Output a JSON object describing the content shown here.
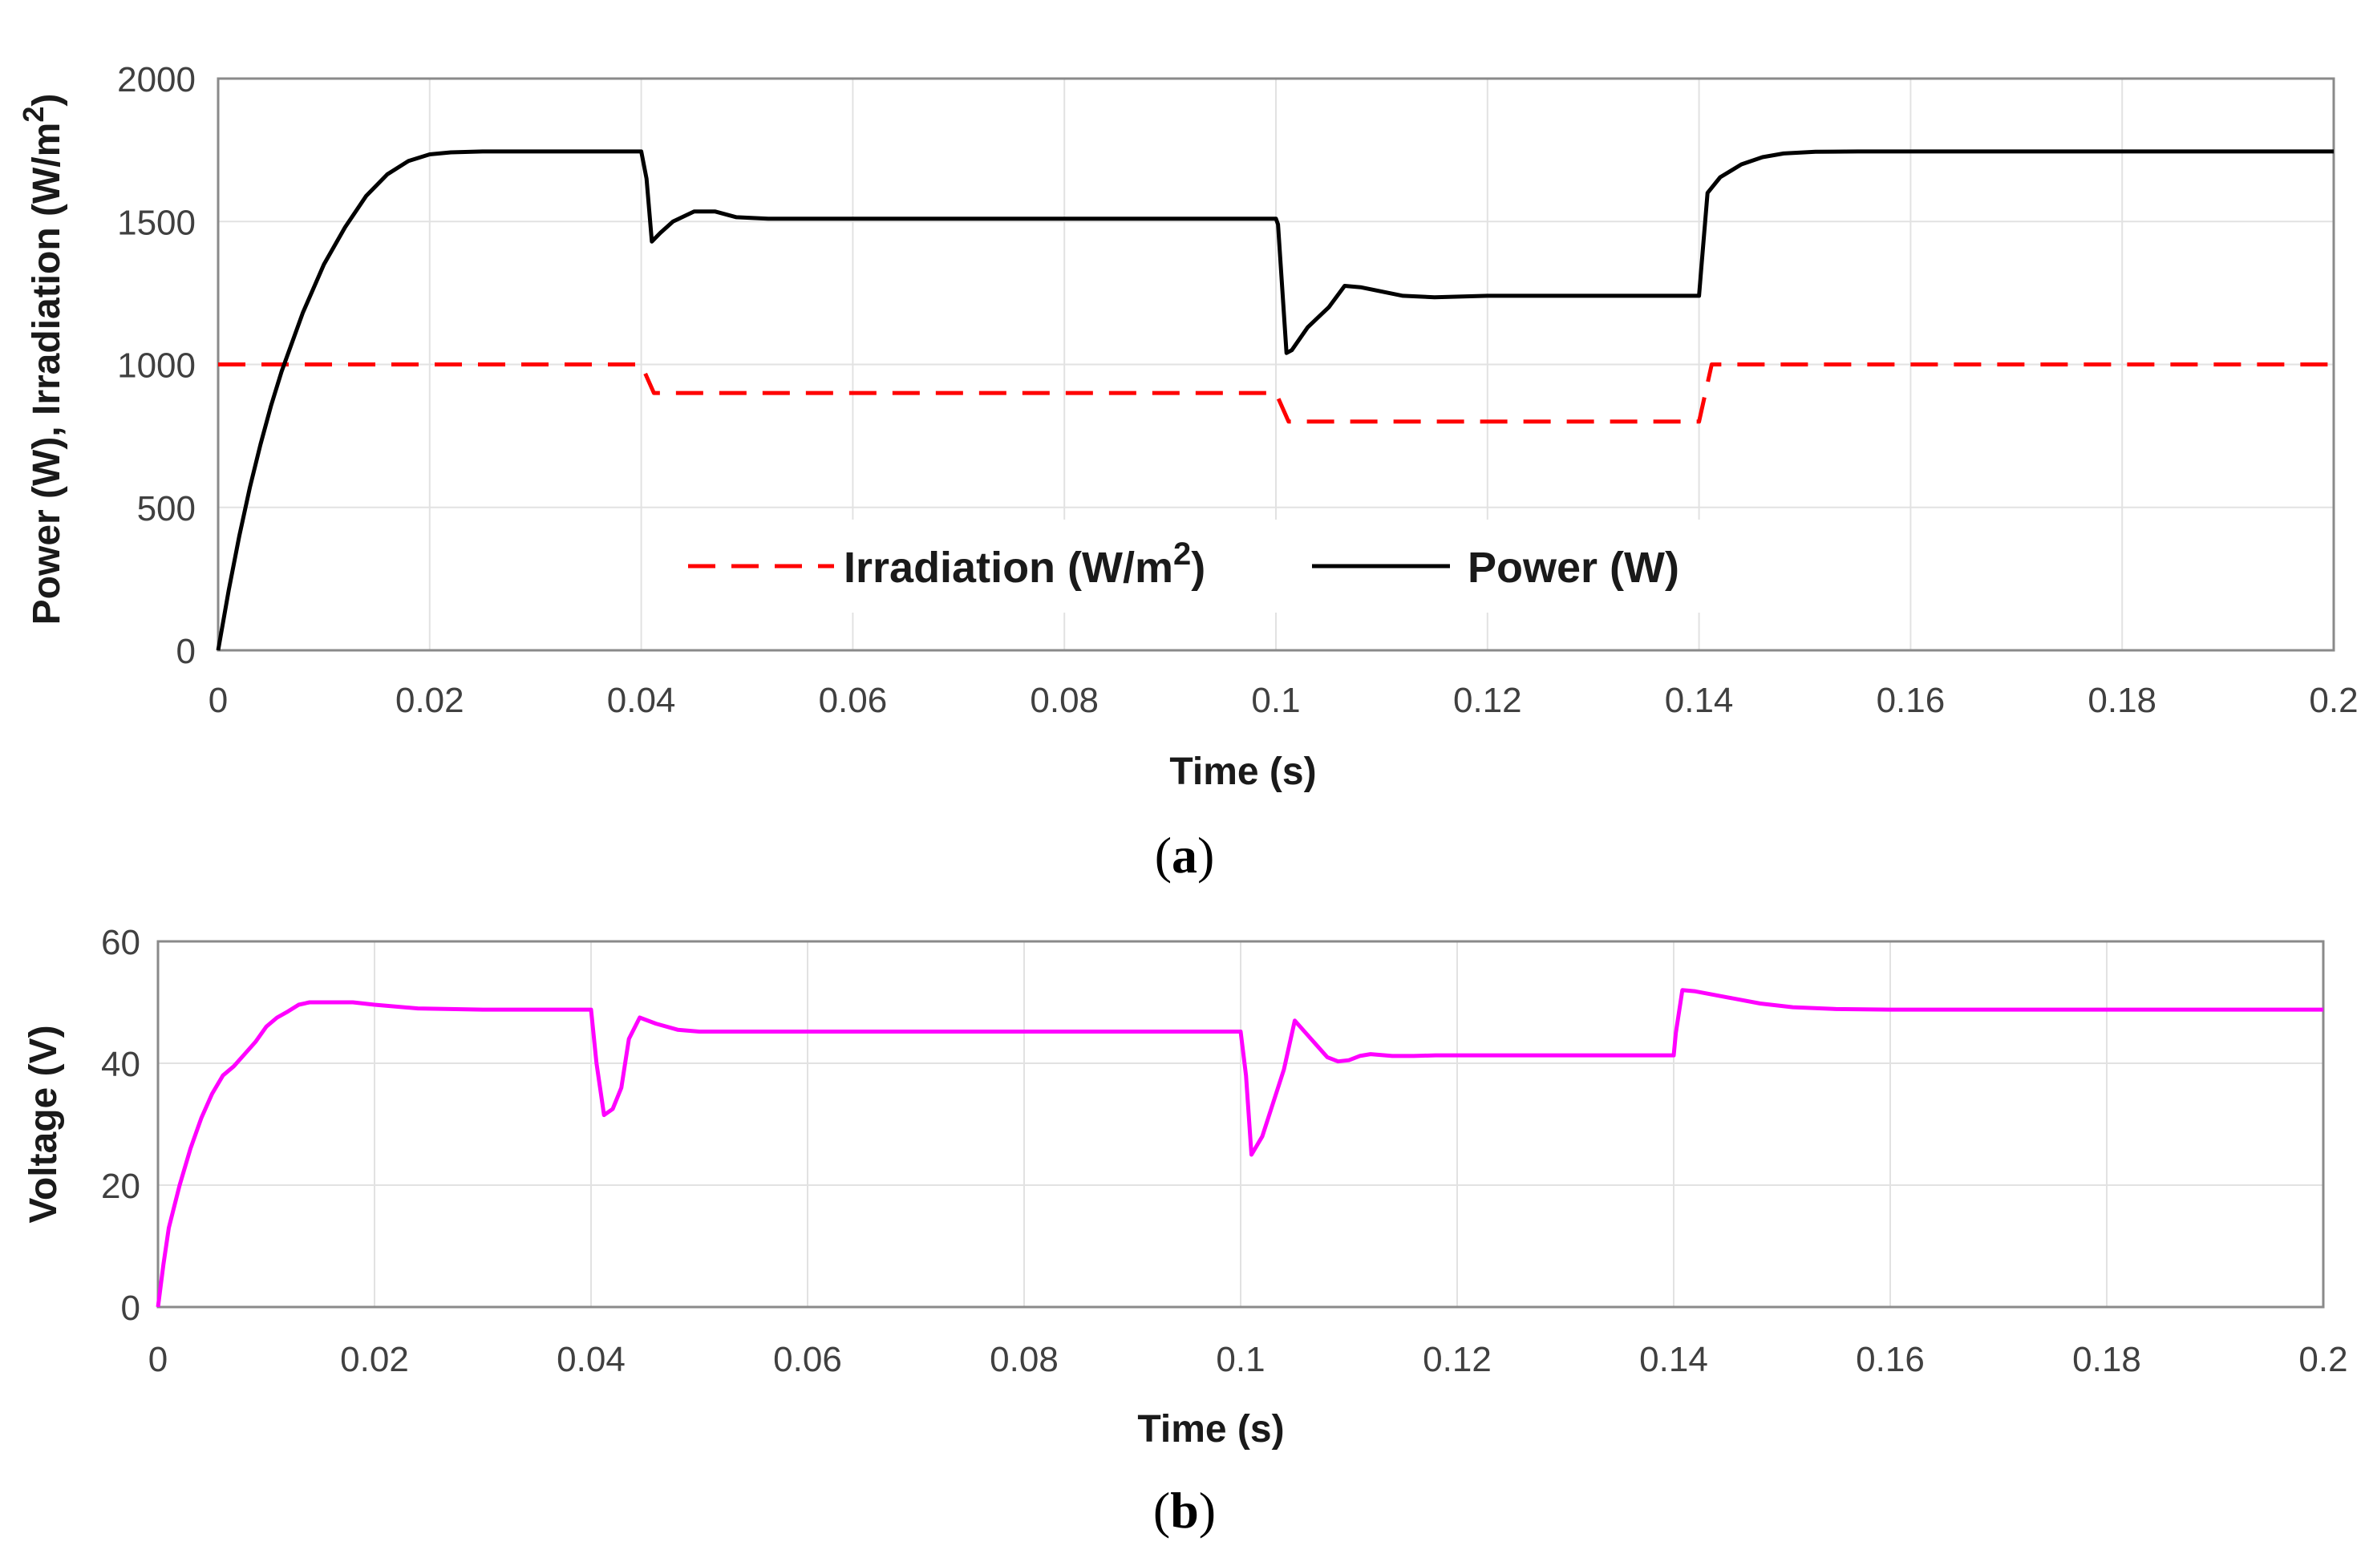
{
  "chart_data": [
    {
      "id": "a",
      "type": "line",
      "panel_label": "a",
      "xlabel": "Time (s)",
      "ylabel": "Power (W), Irradiation (W/m",
      "ylabel_sup": "2",
      "ylabel_close": ")",
      "xlim": [
        0,
        0.2
      ],
      "ylim": [
        0,
        2000
      ],
      "xticks": [
        0,
        0.02,
        0.04,
        0.06,
        0.08,
        0.1,
        0.12,
        0.14,
        0.16,
        0.18,
        0.2
      ],
      "xtick_labels": [
        "0",
        "0.02",
        "0.04",
        "0.06",
        "0.08",
        "0.1",
        "0.12",
        "0.14",
        "0.16",
        "0.18",
        "0.2"
      ],
      "yticks": [
        0,
        500,
        1000,
        1500,
        2000
      ],
      "ytick_labels": [
        "0",
        "500",
        "1000",
        "1500",
        "2000"
      ],
      "grid": true,
      "legend": {
        "placement": "lower-center",
        "entries": [
          {
            "label": "Irradiation (W/m",
            "sup": "2",
            "close": ")"
          },
          {
            "label": "Power (W)"
          }
        ]
      },
      "series": [
        {
          "name": "Irradiation (W/m2)",
          "color": "#ff0000",
          "style": "dashed",
          "points": [
            [
              0,
              1000
            ],
            [
              0.04,
              1000
            ],
            [
              0.0412,
              900
            ],
            [
              0.1,
              900
            ],
            [
              0.1012,
              800
            ],
            [
              0.14,
              800
            ],
            [
              0.1412,
              1000
            ],
            [
              0.2,
              1000
            ]
          ]
        },
        {
          "name": "Power (W)",
          "color": "#000000",
          "style": "solid",
          "points": [
            [
              0,
              0
            ],
            [
              0.001,
              210
            ],
            [
              0.002,
              400
            ],
            [
              0.003,
              570
            ],
            [
              0.004,
              720
            ],
            [
              0.005,
              855
            ],
            [
              0.006,
              975
            ],
            [
              0.008,
              1180
            ],
            [
              0.01,
              1350
            ],
            [
              0.012,
              1480
            ],
            [
              0.014,
              1590
            ],
            [
              0.016,
              1665
            ],
            [
              0.018,
              1712
            ],
            [
              0.02,
              1735
            ],
            [
              0.022,
              1742
            ],
            [
              0.025,
              1745
            ],
            [
              0.04,
              1745
            ],
            [
              0.0405,
              1650
            ],
            [
              0.041,
              1430
            ],
            [
              0.0418,
              1460
            ],
            [
              0.043,
              1500
            ],
            [
              0.045,
              1535
            ],
            [
              0.047,
              1535
            ],
            [
              0.049,
              1515
            ],
            [
              0.052,
              1510
            ],
            [
              0.1,
              1510
            ],
            [
              0.1002,
              1490
            ],
            [
              0.101,
              1040
            ],
            [
              0.1015,
              1050
            ],
            [
              0.103,
              1130
            ],
            [
              0.105,
              1200
            ],
            [
              0.1065,
              1275
            ],
            [
              0.108,
              1270
            ],
            [
              0.11,
              1255
            ],
            [
              0.112,
              1240
            ],
            [
              0.115,
              1235
            ],
            [
              0.12,
              1240
            ],
            [
              0.14,
              1240
            ],
            [
              0.1402,
              1330
            ],
            [
              0.1408,
              1600
            ],
            [
              0.142,
              1655
            ],
            [
              0.144,
              1700
            ],
            [
              0.146,
              1725
            ],
            [
              0.148,
              1738
            ],
            [
              0.151,
              1744
            ],
            [
              0.155,
              1745
            ],
            [
              0.2,
              1745
            ]
          ]
        }
      ]
    },
    {
      "id": "b",
      "type": "line",
      "panel_label": "b",
      "xlabel": "Time (s)",
      "ylabel": "Voltage (V)",
      "xlim": [
        0,
        0.2
      ],
      "ylim": [
        0,
        60
      ],
      "xticks": [
        0,
        0.02,
        0.04,
        0.06,
        0.08,
        0.1,
        0.12,
        0.14,
        0.16,
        0.18,
        0.2
      ],
      "xtick_labels": [
        "0",
        "0.02",
        "0.04",
        "0.06",
        "0.08",
        "0.1",
        "0.12",
        "0.14",
        "0.16",
        "0.18",
        "0.2"
      ],
      "yticks": [
        0,
        20,
        40,
        60
      ],
      "ytick_labels": [
        "0",
        "20",
        "40",
        "60"
      ],
      "grid": true,
      "series": [
        {
          "name": "Voltage (V)",
          "color": "#ff00ff",
          "style": "solid",
          "points": [
            [
              0,
              0
            ],
            [
              0.0005,
              7
            ],
            [
              0.001,
              13
            ],
            [
              0.002,
              20
            ],
            [
              0.003,
              26
            ],
            [
              0.004,
              31
            ],
            [
              0.005,
              35
            ],
            [
              0.006,
              38
            ],
            [
              0.007,
              39.5
            ],
            [
              0.008,
              41.5
            ],
            [
              0.009,
              43.5
            ],
            [
              0.01,
              46
            ],
            [
              0.011,
              47.5
            ],
            [
              0.012,
              48.5
            ],
            [
              0.013,
              49.6
            ],
            [
              0.014,
              50
            ],
            [
              0.016,
              50
            ],
            [
              0.018,
              50
            ],
            [
              0.02,
              49.6
            ],
            [
              0.024,
              49
            ],
            [
              0.03,
              48.8
            ],
            [
              0.04,
              48.8
            ],
            [
              0.0405,
              40
            ],
            [
              0.0412,
              31.5
            ],
            [
              0.042,
              32.5
            ],
            [
              0.0428,
              36
            ],
            [
              0.0435,
              44
            ],
            [
              0.0445,
              47.5
            ],
            [
              0.046,
              46.5
            ],
            [
              0.048,
              45.5
            ],
            [
              0.05,
              45.2
            ],
            [
              0.1,
              45.2
            ],
            [
              0.1005,
              38
            ],
            [
              0.101,
              25
            ],
            [
              0.102,
              28
            ],
            [
              0.104,
              39
            ],
            [
              0.105,
              47
            ],
            [
              0.106,
              45
            ],
            [
              0.107,
              43
            ],
            [
              0.108,
              41
            ],
            [
              0.109,
              40.3
            ],
            [
              0.11,
              40.5
            ],
            [
              0.111,
              41.2
            ],
            [
              0.112,
              41.5
            ],
            [
              0.114,
              41.2
            ],
            [
              0.116,
              41.2
            ],
            [
              0.118,
              41.3
            ],
            [
              0.14,
              41.3
            ],
            [
              0.1402,
              45
            ],
            [
              0.1408,
              52
            ],
            [
              0.142,
              51.8
            ],
            [
              0.145,
              50.8
            ],
            [
              0.148,
              49.8
            ],
            [
              0.151,
              49.2
            ],
            [
              0.155,
              48.9
            ],
            [
              0.16,
              48.8
            ],
            [
              0.2,
              48.8
            ]
          ]
        }
      ]
    }
  ]
}
